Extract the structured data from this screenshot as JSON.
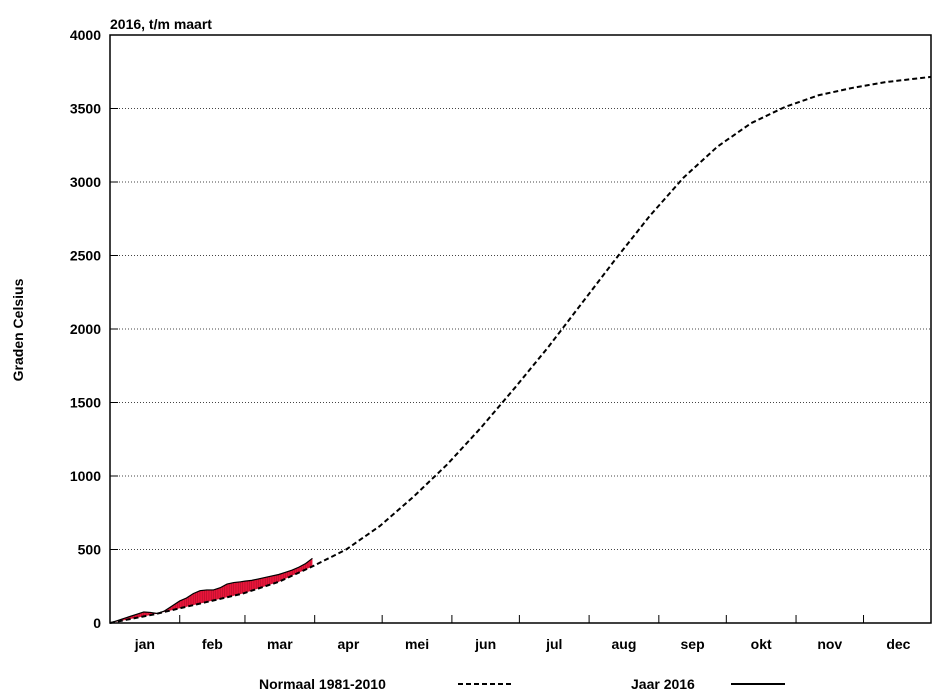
{
  "colors": {
    "current_fill": "#e8153a",
    "current_line": "#000000",
    "normal_line": "#000000",
    "grid": "#444444",
    "axis": "#000000"
  },
  "chart_data": {
    "type": "line",
    "title": "2016, t/m maart",
    "xlabel": "",
    "ylabel": "Graden Celsius",
    "ylim": [
      0,
      4000
    ],
    "y_ticks": [
      "0",
      "500",
      "1000",
      "1500",
      "2000",
      "2500",
      "3000",
      "3500",
      "4000"
    ],
    "xlim": [
      0,
      365
    ],
    "month_labels": [
      "jan",
      "feb",
      "mar",
      "apr",
      "mei",
      "jun",
      "jul",
      "aug",
      "sep",
      "okt",
      "nov",
      "dec"
    ],
    "month_starts": [
      0,
      31,
      60,
      91,
      121,
      152,
      182,
      213,
      244,
      274,
      305,
      335,
      366
    ],
    "grid": "horizontal dotted",
    "legend": {
      "position": "bottom",
      "entries": [
        {
          "label": "Normaal 1981-2010",
          "style": "dashed"
        },
        {
          "label": "Jaar 2016",
          "style": "solid"
        }
      ]
    },
    "series": [
      {
        "name": "Normaal 1981-2010",
        "style": "dashed",
        "x": [
          0,
          10,
          20,
          31,
          45,
          59,
          75,
          90,
          105,
          120,
          135,
          150,
          165,
          180,
          195,
          210,
          225,
          240,
          255,
          270,
          285,
          300,
          315,
          330,
          345,
          365
        ],
        "y": [
          0,
          30,
          60,
          100,
          150,
          200,
          280,
          385,
          500,
          660,
          860,
          1080,
          1330,
          1600,
          1880,
          2180,
          2480,
          2770,
          3030,
          3240,
          3400,
          3510,
          3590,
          3640,
          3680,
          3715
        ]
      },
      {
        "name": "Jaar 2016",
        "style": "solid",
        "x": [
          0,
          3,
          6,
          9,
          12,
          15,
          18,
          21,
          24,
          27,
          31,
          34,
          37,
          40,
          43,
          46,
          49,
          52,
          55,
          58,
          60,
          63,
          66,
          69,
          72,
          75,
          78,
          81,
          84,
          87,
          90
        ],
        "y": [
          0,
          15,
          30,
          45,
          60,
          75,
          72,
          65,
          80,
          110,
          150,
          170,
          200,
          220,
          225,
          225,
          240,
          265,
          275,
          280,
          285,
          290,
          300,
          310,
          320,
          330,
          345,
          360,
          380,
          405,
          440
        ]
      }
    ]
  }
}
